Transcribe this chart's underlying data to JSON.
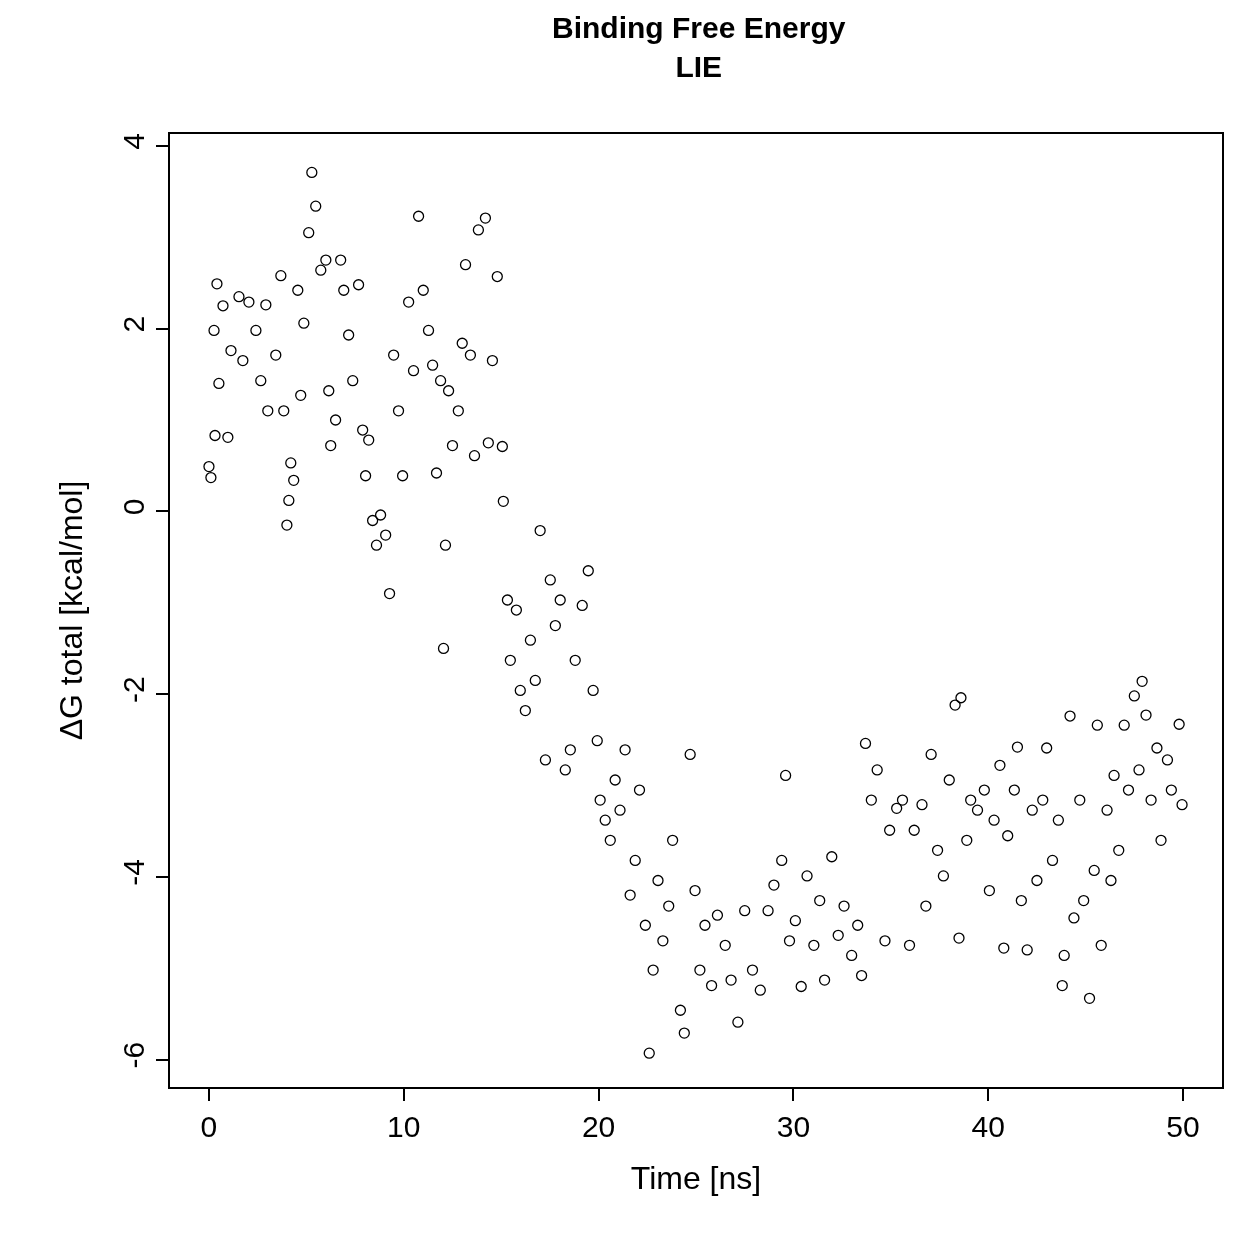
{
  "chart_data": {
    "type": "scatter",
    "title": "Binding Free Energy\nLIE",
    "xlabel": "Time [ns]",
    "ylabel": "ΔG total [kcal/mol]",
    "xlim": [
      -2,
      52
    ],
    "ylim": [
      -6.3,
      4.13
    ],
    "xticks": [
      0,
      10,
      20,
      30,
      40,
      50
    ],
    "yticks": [
      -6,
      -4,
      -2,
      0,
      2,
      4
    ],
    "marker": "circle",
    "series": [
      {
        "color": "#000000",
        "x": [
          0.0,
          0.1,
          0.26,
          0.41,
          0.31,
          0.51,
          0.72,
          0.97,
          1.13,
          1.54,
          1.74,
          2.05,
          2.41,
          2.66,
          2.92,
          3.02,
          3.43,
          3.69,
          3.84,
          4.0,
          4.1,
          4.2,
          4.35,
          4.56,
          4.71,
          4.87,
          5.12,
          5.28,
          5.48,
          5.74,
          6.0,
          6.15,
          6.25,
          6.5,
          6.76,
          6.92,
          7.17,
          7.38,
          7.68,
          7.89,
          8.04,
          8.2,
          8.4,
          8.6,
          8.81,
          9.07,
          9.27,
          9.48,
          9.73,
          9.94,
          10.25,
          10.5,
          10.76,
          11.0,
          11.27,
          11.48,
          11.68,
          11.89,
          12.04,
          12.14,
          12.3,
          12.5,
          12.8,
          13.0,
          13.17,
          13.42,
          13.63,
          13.83,
          14.19,
          14.34,
          14.55,
          14.8,
          15.06,
          15.11,
          15.32,
          15.47,
          15.78,
          15.98,
          16.24,
          16.5,
          16.75,
          17.0,
          17.27,
          17.52,
          17.78,
          18.03,
          18.29,
          18.55,
          18.8,
          19.16,
          19.47,
          19.72,
          19.93,
          20.08,
          20.34,
          20.6,
          20.85,
          21.1,
          21.36,
          21.62,
          21.88,
          22.1,
          22.4,
          22.6,
          22.8,
          23.05,
          23.3,
          23.6,
          23.8,
          24.2,
          24.4,
          24.7,
          24.95,
          25.2,
          25.46,
          25.8,
          26.1,
          26.5,
          26.8,
          27.15,
          27.5,
          27.9,
          28.3,
          28.7,
          29.0,
          29.4,
          29.6,
          29.8,
          30.1,
          30.4,
          30.7,
          31.05,
          31.35,
          31.6,
          31.97,
          32.3,
          32.6,
          32.99,
          33.3,
          33.5,
          33.7,
          34.0,
          34.3,
          34.7,
          34.94,
          35.3,
          35.6,
          35.96,
          36.2,
          36.6,
          36.8,
          37.07,
          37.4,
          37.7,
          38.0,
          38.3,
          38.5,
          38.6,
          38.9,
          39.1,
          39.45,
          39.8,
          40.06,
          40.3,
          40.6,
          40.8,
          41.0,
          41.34,
          41.5,
          41.7,
          42.0,
          42.26,
          42.5,
          42.8,
          43.0,
          43.3,
          43.6,
          43.8,
          43.9,
          44.2,
          44.4,
          44.7,
          44.9,
          45.2,
          45.44,
          45.6,
          45.8,
          46.1,
          46.3,
          46.46,
          46.7,
          46.98,
          47.2,
          47.5,
          47.74,
          47.9,
          48.1,
          48.36,
          48.66,
          48.87,
          49.2,
          49.4,
          49.8,
          49.95
        ],
        "values": [
          0.49,
          0.37,
          1.98,
          2.49,
          0.83,
          1.4,
          2.25,
          0.81,
          1.76,
          2.35,
          1.65,
          2.29,
          1.98,
          1.43,
          2.26,
          1.1,
          1.71,
          2.58,
          1.1,
          -0.15,
          0.12,
          0.53,
          0.34,
          2.42,
          1.27,
          2.06,
          3.05,
          3.71,
          3.34,
          2.64,
          2.75,
          1.32,
          0.72,
          1.0,
          2.75,
          2.42,
          1.93,
          1.43,
          2.48,
          0.89,
          0.39,
          0.78,
          -0.1,
          -0.37,
          -0.04,
          -0.26,
          -0.9,
          1.71,
          1.1,
          0.39,
          2.29,
          1.54,
          3.23,
          2.42,
          1.98,
          1.6,
          0.42,
          1.43,
          -1.5,
          -0.37,
          1.32,
          0.72,
          1.1,
          1.84,
          2.7,
          1.71,
          0.61,
          3.08,
          3.21,
          0.75,
          1.65,
          2.57,
          0.71,
          0.11,
          -0.97,
          -1.63,
          -1.08,
          -1.96,
          -2.18,
          -1.41,
          -1.85,
          -0.21,
          -2.72,
          -0.75,
          -1.25,
          -0.97,
          -2.83,
          -2.61,
          -1.63,
          -1.03,
          -0.65,
          -1.96,
          -2.51,
          -3.16,
          -3.38,
          -3.6,
          -2.94,
          -3.27,
          -2.61,
          -4.2,
          -3.82,
          -3.05,
          -4.53,
          -5.93,
          -5.02,
          -4.04,
          -4.7,
          -4.32,
          -3.6,
          -5.46,
          -5.71,
          -2.66,
          -4.15,
          -5.02,
          -4.53,
          -5.19,
          -4.42,
          -4.75,
          -5.13,
          -5.59,
          -4.37,
          -5.02,
          -5.24,
          -4.37,
          -4.09,
          -3.82,
          -2.89,
          -4.7,
          -4.48,
          -5.2,
          -3.99,
          -4.75,
          -4.26,
          -5.13,
          -3.78,
          -4.64,
          -4.32,
          -4.86,
          -4.53,
          -5.08,
          -2.54,
          -3.16,
          -2.83,
          -4.7,
          -3.49,
          -3.25,
          -3.16,
          -4.75,
          -3.49,
          -3.21,
          -4.32,
          -2.66,
          -3.71,
          -3.99,
          -2.94,
          -2.12,
          -4.67,
          -2.04,
          -3.6,
          -3.16,
          -3.27,
          -3.05,
          -4.15,
          -3.38,
          -2.78,
          -4.78,
          -3.55,
          -3.05,
          -2.58,
          -4.26,
          -4.8,
          -3.27,
          -4.04,
          -3.16,
          -2.59,
          -3.82,
          -3.38,
          -5.19,
          -4.86,
          -2.24,
          -4.45,
          -3.16,
          -4.26,
          -5.33,
          -3.93,
          -2.34,
          -4.75,
          -3.27,
          -4.04,
          -2.89,
          -3.71,
          -2.34,
          -3.05,
          -2.02,
          -2.83,
          -1.86,
          -2.23,
          -3.16,
          -2.59,
          -3.6,
          -2.72,
          -3.05,
          -2.33,
          -3.21
        ]
      }
    ]
  }
}
